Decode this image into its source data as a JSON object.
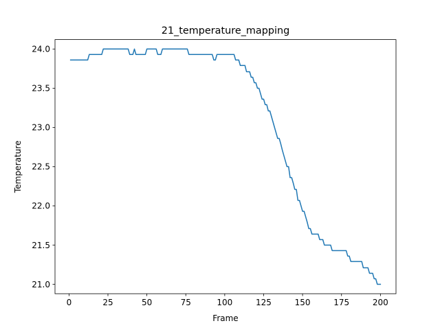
{
  "chart_data": {
    "type": "line",
    "title": "21_temperature_mapping",
    "xlabel": "Frame",
    "ylabel": "Temperature",
    "xlim": [
      -9,
      210
    ],
    "ylim": [
      20.88,
      24.12
    ],
    "xticks": [
      0,
      25,
      50,
      75,
      100,
      125,
      150,
      175,
      200
    ],
    "xtick_labels": [
      "0",
      "25",
      "50",
      "75",
      "100",
      "125",
      "150",
      "175",
      "200"
    ],
    "yticks": [
      21.0,
      21.5,
      22.0,
      22.5,
      23.0,
      23.5,
      24.0
    ],
    "ytick_labels": [
      "21.0",
      "21.5",
      "22.0",
      "22.5",
      "23.0",
      "23.5",
      "24.0"
    ],
    "grid": false,
    "series": [
      {
        "name": "",
        "color": "#1f77b4",
        "points": [
          [
            1,
            23.86
          ],
          [
            12,
            23.86
          ],
          [
            13,
            23.93
          ],
          [
            21,
            23.93
          ],
          [
            22,
            24.0
          ],
          [
            38,
            24.0
          ],
          [
            39,
            23.93
          ],
          [
            41,
            23.93
          ],
          [
            42,
            24.0
          ],
          [
            43,
            23.93
          ],
          [
            49,
            23.93
          ],
          [
            50,
            24.0
          ],
          [
            56,
            24.0
          ],
          [
            57,
            23.93
          ],
          [
            59,
            23.93
          ],
          [
            60,
            24.0
          ],
          [
            76,
            24.0
          ],
          [
            77,
            23.93
          ],
          [
            92,
            23.93
          ],
          [
            93,
            23.86
          ],
          [
            94,
            23.86
          ],
          [
            95,
            23.93
          ],
          [
            106,
            23.93
          ],
          [
            107,
            23.86
          ],
          [
            109,
            23.86
          ],
          [
            110,
            23.79
          ],
          [
            113,
            23.79
          ],
          [
            114,
            23.71
          ],
          [
            116,
            23.71
          ],
          [
            117,
            23.64
          ],
          [
            118,
            23.64
          ],
          [
            119,
            23.57
          ],
          [
            120,
            23.57
          ],
          [
            121,
            23.5
          ],
          [
            122,
            23.5
          ],
          [
            123,
            23.43
          ],
          [
            124,
            23.36
          ],
          [
            125,
            23.36
          ],
          [
            126,
            23.29
          ],
          [
            127,
            23.29
          ],
          [
            128,
            23.21
          ],
          [
            129,
            23.21
          ],
          [
            130,
            23.14
          ],
          [
            131,
            23.07
          ],
          [
            132,
            23.0
          ],
          [
            133,
            22.93
          ],
          [
            134,
            22.86
          ],
          [
            135,
            22.86
          ],
          [
            136,
            22.79
          ],
          [
            137,
            22.71
          ],
          [
            138,
            22.64
          ],
          [
            139,
            22.57
          ],
          [
            140,
            22.5
          ],
          [
            141,
            22.5
          ],
          [
            142,
            22.36
          ],
          [
            143,
            22.36
          ],
          [
            144,
            22.29
          ],
          [
            145,
            22.21
          ],
          [
            146,
            22.21
          ],
          [
            147,
            22.07
          ],
          [
            148,
            22.07
          ],
          [
            149,
            22.0
          ],
          [
            150,
            21.93
          ],
          [
            151,
            21.93
          ],
          [
            152,
            21.86
          ],
          [
            153,
            21.79
          ],
          [
            154,
            21.71
          ],
          [
            155,
            21.71
          ],
          [
            156,
            21.64
          ],
          [
            160,
            21.64
          ],
          [
            161,
            21.57
          ],
          [
            163,
            21.57
          ],
          [
            164,
            21.5
          ],
          [
            168,
            21.5
          ],
          [
            169,
            21.43
          ],
          [
            178,
            21.43
          ],
          [
            179,
            21.36
          ],
          [
            180,
            21.36
          ],
          [
            181,
            21.29
          ],
          [
            188,
            21.29
          ],
          [
            189,
            21.21
          ],
          [
            192,
            21.21
          ],
          [
            193,
            21.14
          ],
          [
            195,
            21.14
          ],
          [
            196,
            21.07
          ],
          [
            197,
            21.07
          ],
          [
            198,
            21.0
          ],
          [
            200,
            21.0
          ]
        ]
      }
    ]
  }
}
